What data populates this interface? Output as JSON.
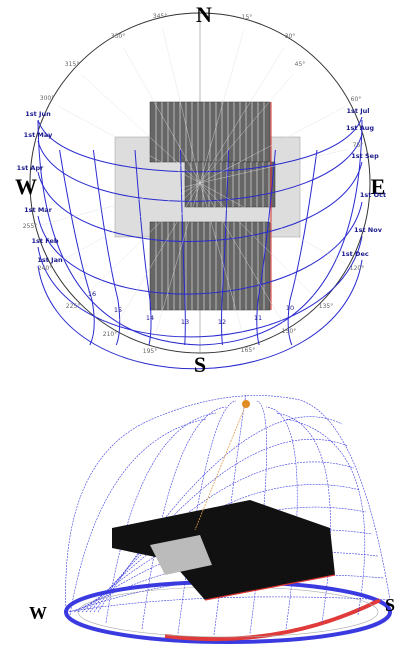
{
  "top_diagram": {
    "compass": {
      "north": "N",
      "south": "S",
      "west": "W",
      "east": "E"
    },
    "degree_labels": [
      "15°",
      "30°",
      "45°",
      "60°",
      "75°",
      "120°",
      "135°",
      "150°",
      "165°",
      "195°",
      "210°",
      "225°",
      "240°",
      "255°",
      "300°",
      "315°",
      "330°",
      "345°"
    ],
    "month_labels_right": [
      "1st Jul",
      "1st Aug",
      "1st Sep",
      "1st Oct",
      "1st Nov",
      "1st Dec"
    ],
    "month_labels_left": [
      "1st Jun",
      "1st May",
      "1st Apr",
      "1st Mar",
      "1st Feb",
      "1st Jan"
    ],
    "hour_labels": [
      "16",
      "15",
      "14",
      "13",
      "12",
      "11",
      "10"
    ]
  },
  "bottom_diagram": {
    "west": "W",
    "south": "S"
  }
}
